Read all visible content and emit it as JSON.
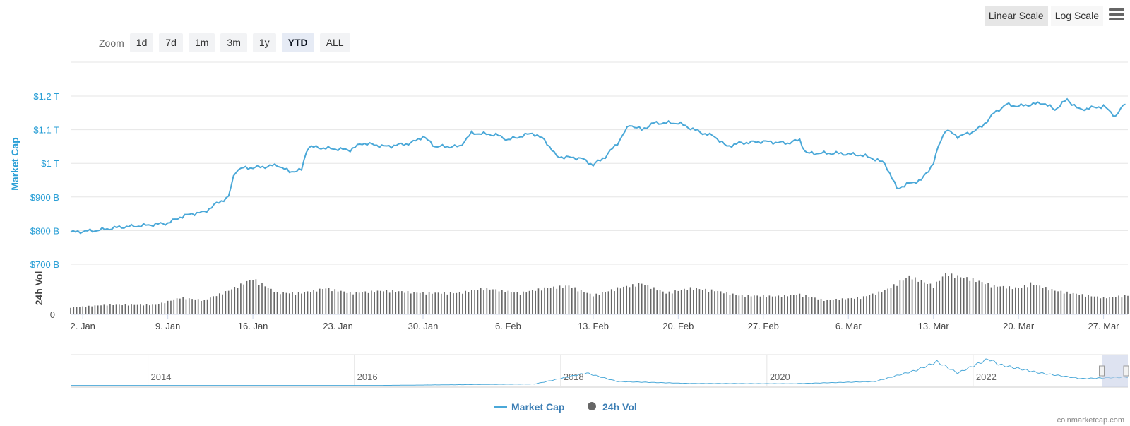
{
  "zoom": {
    "label": "Zoom",
    "buttons": [
      "1d",
      "7d",
      "1m",
      "3m",
      "1y",
      "YTD",
      "ALL"
    ],
    "active": "YTD"
  },
  "scale": {
    "linear_label": "Linear Scale",
    "log_label": "Log Scale",
    "active": "Linear Scale"
  },
  "menu_icon": "hamburger-menu-icon",
  "credit": "coinmarketcap.com",
  "colors": {
    "market_cap": "#4aa8d8",
    "volume": "#666666",
    "grid": "#e6e6e6",
    "navigator_mask": "#c8d0e8",
    "accent_text": "#2a9fd6"
  },
  "chart_data": [
    {
      "type": "line",
      "ylabel": "Market Cap",
      "yticks": [
        "$700 B",
        "$800 B",
        "$900 B",
        "$1 T",
        "$1.1 T",
        "$1.2 T"
      ],
      "ylim": [
        700,
        1230
      ],
      "xticks": [
        "2. Jan",
        "9. Jan",
        "16. Jan",
        "23. Jan",
        "30. Jan",
        "6. Feb",
        "13. Feb",
        "20. Feb",
        "27. Feb",
        "6. Mar",
        "13. Mar",
        "20. Mar",
        "27. Mar"
      ],
      "x_start": "1. Jan",
      "x_end": "29. Mar",
      "series": [
        {
          "name": "Market Cap",
          "unit": "B USD",
          "points": [
            [
              "1 Jan",
              795
            ],
            [
              "3 Jan",
              800
            ],
            [
              "5 Jan",
              810
            ],
            [
              "7 Jan",
              815
            ],
            [
              "9 Jan",
              822
            ],
            [
              "10 Jan",
              840
            ],
            [
              "11 Jan",
              850
            ],
            [
              "12 Jan",
              855
            ],
            [
              "13 Jan",
              880
            ],
            [
              "14 Jan",
              900
            ],
            [
              "14.5 Jan",
              975
            ],
            [
              "15 Jan",
              985
            ],
            [
              "17 Jan",
              990
            ],
            [
              "18 Jan",
              995
            ],
            [
              "19 Jan",
              975
            ],
            [
              "20 Jan",
              980
            ],
            [
              "20.5 Jan",
              1050
            ],
            [
              "22 Jan",
              1045
            ],
            [
              "24 Jan",
              1040
            ],
            [
              "25 Jan",
              1060
            ],
            [
              "27 Jan",
              1050
            ],
            [
              "29 Jan",
              1060
            ],
            [
              "30 Jan",
              1080
            ],
            [
              "31 Jan",
              1050
            ],
            [
              "2 Feb",
              1050
            ],
            [
              "3 Feb",
              1090
            ],
            [
              "5 Feb",
              1085
            ],
            [
              "6 Feb",
              1070
            ],
            [
              "8 Feb",
              1090
            ],
            [
              "9 Feb",
              1070
            ],
            [
              "10 Feb",
              1020
            ],
            [
              "12 Feb",
              1015
            ],
            [
              "13 Feb",
              995
            ],
            [
              "14 Feb",
              1020
            ],
            [
              "15 Feb",
              1060
            ],
            [
              "16 Feb",
              1115
            ],
            [
              "17 Feb",
              1100
            ],
            [
              "18 Feb",
              1120
            ],
            [
              "20 Feb",
              1120
            ],
            [
              "21 Feb",
              1105
            ],
            [
              "22 Feb",
              1090
            ],
            [
              "23 Feb",
              1080
            ],
            [
              "24 Feb",
              1050
            ],
            [
              "25 Feb",
              1060
            ],
            [
              "27 Feb",
              1065
            ],
            [
              "1 Mar",
              1060
            ],
            [
              "2 Mar",
              1070
            ],
            [
              "2.5 Mar",
              1030
            ],
            [
              "5 Mar",
              1030
            ],
            [
              "7 Mar",
              1025
            ],
            [
              "8 Mar",
              1015
            ],
            [
              "9 Mar",
              1000
            ],
            [
              "10 Mar",
              925
            ],
            [
              "11 Mar",
              940
            ],
            [
              "12 Mar",
              950
            ],
            [
              "13 Mar",
              1000
            ],
            [
              "13.5 Mar",
              1060
            ],
            [
              "14 Mar",
              1100
            ],
            [
              "15 Mar",
              1080
            ],
            [
              "16 Mar",
              1090
            ],
            [
              "17 Mar",
              1110
            ],
            [
              "18 Mar",
              1150
            ],
            [
              "19 Mar",
              1175
            ],
            [
              "20 Mar",
              1170
            ],
            [
              "22 Mar",
              1180
            ],
            [
              "23 Mar",
              1160
            ],
            [
              "24 Mar",
              1190
            ],
            [
              "25 Mar",
              1160
            ],
            [
              "27 Mar",
              1170
            ],
            [
              "28 Mar",
              1140
            ],
            [
              "29 Mar",
              1190
            ]
          ]
        },
        {
          "name": "24h Vol",
          "type": "bar",
          "ylabel": "24h Vol",
          "ytick": "0",
          "unit": "relative",
          "points": [
            [
              "1 Jan",
              0.15
            ],
            [
              "4 Jan",
              0.2
            ],
            [
              "8 Jan",
              0.2
            ],
            [
              "10 Jan",
              0.35
            ],
            [
              "12 Jan",
              0.3
            ],
            [
              "14 Jan",
              0.5
            ],
            [
              "16 Jan",
              0.75
            ],
            [
              "18 Jan",
              0.45
            ],
            [
              "20 Jan",
              0.45
            ],
            [
              "22 Jan",
              0.55
            ],
            [
              "24 Jan",
              0.45
            ],
            [
              "27 Jan",
              0.5
            ],
            [
              "30 Jan",
              0.45
            ],
            [
              "2 Feb",
              0.45
            ],
            [
              "4 Feb",
              0.55
            ],
            [
              "7 Feb",
              0.45
            ],
            [
              "9 Feb",
              0.55
            ],
            [
              "11 Feb",
              0.6
            ],
            [
              "13 Feb",
              0.4
            ],
            [
              "15 Feb",
              0.55
            ],
            [
              "17 Feb",
              0.65
            ],
            [
              "19 Feb",
              0.45
            ],
            [
              "21 Feb",
              0.55
            ],
            [
              "23 Feb",
              0.5
            ],
            [
              "25 Feb",
              0.4
            ],
            [
              "28 Feb",
              0.38
            ],
            [
              "2 Mar",
              0.42
            ],
            [
              "4 Mar",
              0.3
            ],
            [
              "7 Mar",
              0.35
            ],
            [
              "9 Mar",
              0.5
            ],
            [
              "11 Mar",
              0.8
            ],
            [
              "13 Mar",
              0.6
            ],
            [
              "14 Mar",
              0.85
            ],
            [
              "16 Mar",
              0.75
            ],
            [
              "18 Mar",
              0.6
            ],
            [
              "20 Mar",
              0.55
            ],
            [
              "21 Mar",
              0.65
            ],
            [
              "23 Mar",
              0.5
            ],
            [
              "25 Mar",
              0.42
            ],
            [
              "27 Mar",
              0.35
            ],
            [
              "29 Mar",
              0.4
            ]
          ]
        }
      ],
      "legend": [
        "Market Cap",
        "24h Vol"
      ],
      "legend_position": "bottom-center",
      "grid": true
    },
    {
      "type": "area",
      "role": "navigator",
      "xticks": [
        "2014",
        "2016",
        "2018",
        "2020",
        "2022"
      ],
      "series": [
        {
          "name": "Market Cap",
          "points": [
            [
              "2013",
              0.01
            ],
            [
              "2016",
              0.01
            ],
            [
              "2017.5",
              0.06
            ],
            [
              "2018",
              0.45
            ],
            [
              "2018.3",
              0.15
            ],
            [
              "2019",
              0.08
            ],
            [
              "2020",
              0.07
            ],
            [
              "2020.8",
              0.15
            ],
            [
              "2021.2",
              0.55
            ],
            [
              "2021.4",
              0.85
            ],
            [
              "2021.6",
              0.45
            ],
            [
              "2021.9",
              0.95
            ],
            [
              "2022",
              0.75
            ],
            [
              "2022.4",
              0.45
            ],
            [
              "2022.8",
              0.25
            ],
            [
              "2023.2",
              0.3
            ]
          ]
        }
      ],
      "selected_range": "YTD"
    }
  ]
}
